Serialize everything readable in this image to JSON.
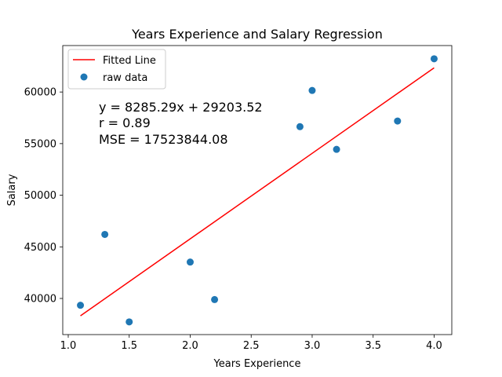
{
  "chart_data": {
    "type": "scatter",
    "title": "Years Experience and Salary Regression",
    "xlabel": "Years Experience",
    "ylabel": "Salary",
    "xlim": [
      0.955,
      4.145
    ],
    "ylim": [
      36500,
      64500
    ],
    "xticks": [
      1.0,
      1.5,
      2.0,
      2.5,
      3.0,
      3.5,
      4.0
    ],
    "xtick_labels": [
      "1.0",
      "1.5",
      "2.0",
      "2.5",
      "3.0",
      "3.5",
      "4.0"
    ],
    "yticks": [
      40000,
      45000,
      50000,
      55000,
      60000
    ],
    "ytick_labels": [
      "40000",
      "45000",
      "50000",
      "55000",
      "60000"
    ],
    "grid": false,
    "legend_position": "top-left",
    "series": [
      {
        "name": "raw data",
        "kind": "scatter",
        "color": "#1f77b4",
        "x": [
          1.1,
          1.3,
          1.5,
          2.0,
          2.2,
          2.9,
          3.0,
          3.2,
          3.7,
          4.0
        ],
        "y": [
          39343,
          46205,
          37731,
          43525,
          39891,
          56642,
          60150,
          54445,
          57189,
          63218
        ]
      },
      {
        "name": "Fitted Line",
        "kind": "line",
        "color": "#ff0000",
        "x": [
          1.1,
          4.0
        ],
        "y": [
          38317.34,
          62344.68
        ]
      }
    ],
    "annotations": [
      "y = 8285.29x + 29203.52",
      "r = 0.89",
      "MSE = 17523844.08"
    ]
  }
}
